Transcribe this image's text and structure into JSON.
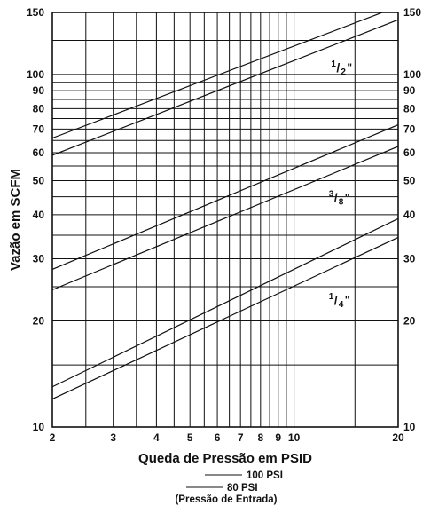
{
  "chart_data": {
    "type": "line",
    "x_scale": "log",
    "y_scale": "log",
    "xlim": [
      2,
      20
    ],
    "ylim": [
      10,
      150
    ],
    "xlabel": "Queda de Pressão em PSID",
    "ylabel": "Vazão em SCFM",
    "x_ticks": [
      "2",
      "3",
      "4",
      "5",
      "6",
      "7",
      "8",
      "9",
      "10",
      "20"
    ],
    "y_ticks": [
      "10",
      "20",
      "30",
      "40",
      "50",
      "60",
      "70",
      "80",
      "90",
      "100",
      "150"
    ],
    "grid": true,
    "series": [
      {
        "size": "1/2\"",
        "legend_key": "100 PSI",
        "x": [
          2,
          20
        ],
        "y": [
          66,
          156
        ]
      },
      {
        "size": "1/2\"",
        "legend_key": "80 PSI",
        "x": [
          2,
          20
        ],
        "y": [
          59,
          143
        ]
      },
      {
        "size": "3/8\"",
        "legend_key": "100 PSI",
        "x": [
          2,
          20
        ],
        "y": [
          28,
          72
        ]
      },
      {
        "size": "3/8\"",
        "legend_key": "80 PSI",
        "x": [
          2,
          20
        ],
        "y": [
          24.5,
          62.5
        ]
      },
      {
        "size": "1/4\"",
        "legend_key": "100 PSI",
        "x": [
          2,
          20
        ],
        "y": [
          13,
          39
        ]
      },
      {
        "size": "1/4\"",
        "legend_key": "80 PSI",
        "x": [
          2,
          20
        ],
        "y": [
          12,
          34.5
        ]
      }
    ],
    "size_labels": [
      {
        "num": "1",
        "den": "2",
        "suffix": "\"",
        "x": 12.8,
        "y": 103
      },
      {
        "num": "3",
        "den": "8",
        "suffix": "\"",
        "x": 12.6,
        "y": 44
      },
      {
        "num": "1",
        "den": "4",
        "suffix": "\"",
        "x": 12.6,
        "y": 22.5
      }
    ],
    "legend": {
      "items": [
        "100 PSI",
        "80 PSI"
      ],
      "caption": "(Pressão de Entrada)"
    }
  }
}
